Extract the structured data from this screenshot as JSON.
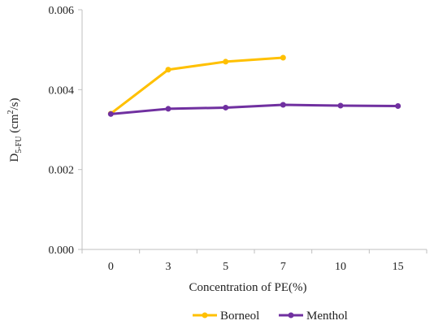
{
  "chart_data": {
    "type": "line",
    "categories": [
      "0",
      "3",
      "5",
      "7",
      "10",
      "15"
    ],
    "series": [
      {
        "name": "Borneol",
        "color": "#FFC000",
        "values": [
          0.0034,
          0.0045,
          0.0047,
          0.0048,
          null,
          null
        ]
      },
      {
        "name": "Menthol",
        "color": "#7030A0",
        "values": [
          0.00339,
          0.00352,
          0.00355,
          0.00362,
          0.0036,
          0.00359
        ]
      }
    ],
    "xlabel": "Concentration  of PE(%)",
    "ylabel": {
      "main": "D",
      "sub": "5-FU",
      "unit_open": " (cm",
      "sup": "2",
      "unit_close": "/s)"
    },
    "ylim": [
      0,
      0.006
    ],
    "yticks": [
      0,
      0.002,
      0.004,
      0.006
    ],
    "ytick_labels": [
      "0.000",
      "0.002",
      "0.004",
      "0.006"
    ],
    "grid": false,
    "legend": "bottom"
  }
}
